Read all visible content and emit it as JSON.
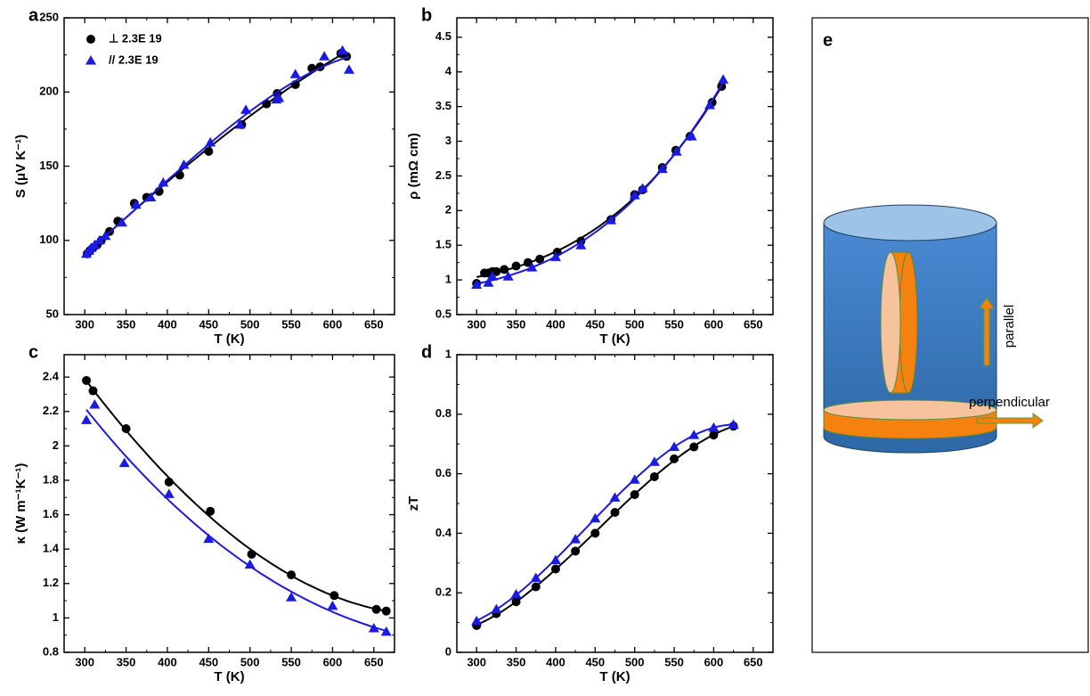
{
  "chart_data": [
    {
      "type": "scatter",
      "label": "a",
      "xlabel": "T (K)",
      "ylabel": "S (μV K⁻¹)",
      "xlim": [
        275,
        675
      ],
      "ylim": [
        50,
        250
      ],
      "xticks": [
        300,
        350,
        400,
        450,
        500,
        550,
        600,
        650
      ],
      "yticks": [
        50,
        100,
        150,
        200,
        250
      ],
      "legend": "upper left",
      "fit": true,
      "series": [
        {
          "name": "⊥ 2.3E 19",
          "color": "#000000",
          "marker": "circle",
          "x": [
            303,
            306,
            310,
            315,
            320,
            330,
            340,
            360,
            375,
            390,
            415,
            450,
            490,
            520,
            533,
            555,
            575,
            585,
            610,
            617
          ],
          "values": [
            91,
            93,
            95,
            97,
            100,
            106,
            113,
            125,
            129,
            133,
            144,
            160,
            178,
            192,
            199,
            205,
            216,
            217,
            226,
            224
          ]
        },
        {
          "name": "// 2.3E 19",
          "color": "#1a1ae0",
          "marker": "triangle",
          "x": [
            302,
            305,
            308,
            312,
            318,
            325,
            345,
            362,
            380,
            395,
            420,
            452,
            488,
            495,
            532,
            535,
            555,
            590,
            612,
            620
          ],
          "values": [
            91,
            93,
            95,
            97,
            100,
            103,
            112,
            124,
            129,
            139,
            151,
            166,
            178,
            188,
            195,
            196,
            212,
            224,
            228,
            215
          ]
        }
      ]
    },
    {
      "type": "scatter",
      "label": "b",
      "xlabel": "T (K)",
      "ylabel": "ρ (mΩ cm)",
      "xlim": [
        275,
        675
      ],
      "ylim": [
        0.5,
        4.78
      ],
      "xticks": [
        300,
        350,
        400,
        450,
        500,
        550,
        600,
        650
      ],
      "yticks": [
        0.5,
        1.0,
        1.5,
        2.0,
        2.5,
        3.0,
        3.5,
        4.0,
        4.5
      ],
      "fit": true,
      "series": [
        {
          "color": "#000000",
          "marker": "circle",
          "x": [
            300,
            310,
            315,
            320,
            325,
            335,
            350,
            365,
            380,
            402,
            432,
            470,
            500,
            510,
            535,
            552,
            570,
            598,
            610
          ],
          "values": [
            0.95,
            1.1,
            1.1,
            1.12,
            1.12,
            1.15,
            1.2,
            1.25,
            1.3,
            1.4,
            1.56,
            1.87,
            2.23,
            2.3,
            2.62,
            2.87,
            3.07,
            3.56,
            3.79
          ]
        },
        {
          "color": "#1a1ae0",
          "marker": "triangle",
          "x": [
            300,
            315,
            320,
            340,
            370,
            400,
            432,
            470,
            500,
            510,
            535,
            553,
            572,
            595,
            612
          ],
          "values": [
            0.93,
            0.96,
            1.05,
            1.05,
            1.18,
            1.33,
            1.5,
            1.86,
            2.22,
            2.32,
            2.6,
            2.85,
            3.07,
            3.52,
            3.89
          ]
        }
      ]
    },
    {
      "type": "scatter",
      "label": "c",
      "xlabel": "T (K)",
      "ylabel": "κ (W m⁻¹K⁻¹)",
      "xlim": [
        275,
        675
      ],
      "ylim": [
        0.8,
        2.53
      ],
      "xticks": [
        300,
        350,
        400,
        450,
        500,
        550,
        600,
        650
      ],
      "yticks": [
        0.8,
        1.0,
        1.2,
        1.4,
        1.6,
        1.8,
        2.0,
        2.2,
        2.4
      ],
      "fit": true,
      "series": [
        {
          "color": "#000000",
          "marker": "circle",
          "x": [
            302,
            310,
            350,
            402,
            452,
            502,
            550,
            602,
            653,
            665
          ],
          "values": [
            2.38,
            2.32,
            2.1,
            1.79,
            1.62,
            1.37,
            1.25,
            1.13,
            1.05,
            1.04
          ]
        },
        {
          "color": "#1a1ae0",
          "marker": "triangle",
          "x": [
            302,
            312,
            348,
            402,
            450,
            500,
            550,
            600,
            650,
            665
          ],
          "values": [
            2.15,
            2.24,
            1.9,
            1.72,
            1.46,
            1.31,
            1.12,
            1.07,
            0.94,
            0.92
          ]
        }
      ]
    },
    {
      "type": "scatter",
      "label": "d",
      "xlabel": "T (K)",
      "ylabel": "zT",
      "xlim": [
        275,
        675
      ],
      "ylim": [
        0,
        1.0
      ],
      "xticks": [
        300,
        350,
        400,
        450,
        500,
        550,
        600,
        650
      ],
      "yticks": [
        0.0,
        0.2,
        0.4,
        0.6,
        0.8,
        1.0
      ],
      "fit": true,
      "series": [
        {
          "color": "#000000",
          "marker": "circle",
          "x": [
            300,
            325,
            350,
            375,
            400,
            425,
            450,
            475,
            500,
            525,
            550,
            575,
            600,
            625
          ],
          "values": [
            0.09,
            0.13,
            0.17,
            0.22,
            0.28,
            0.34,
            0.4,
            0.47,
            0.53,
            0.59,
            0.65,
            0.69,
            0.73,
            0.76
          ]
        },
        {
          "color": "#1a1ae0",
          "marker": "triangle",
          "x": [
            300,
            325,
            350,
            375,
            400,
            425,
            450,
            475,
            500,
            525,
            550,
            575,
            600,
            625
          ],
          "values": [
            0.105,
            0.145,
            0.195,
            0.25,
            0.31,
            0.38,
            0.45,
            0.52,
            0.58,
            0.64,
            0.69,
            0.73,
            0.755,
            0.765
          ]
        }
      ]
    }
  ],
  "diagram": {
    "label": "e",
    "arrows": [
      "parallel",
      "perpendicular"
    ]
  }
}
